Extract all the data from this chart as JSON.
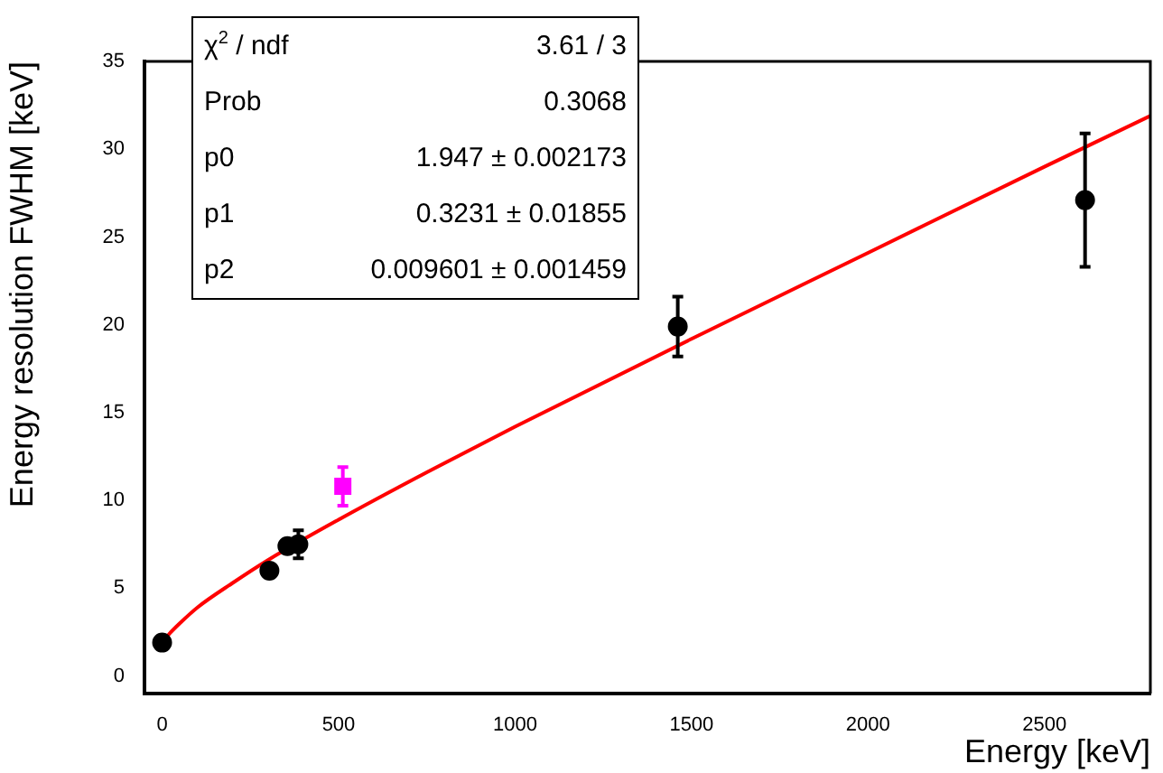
{
  "chart_data": {
    "type": "scatter",
    "xlabel": "Energy [keV]",
    "ylabel": "Energy resolution FWHM [keV]",
    "xlim": [
      -50,
      2800
    ],
    "ylim": [
      -1,
      35
    ],
    "xticks": [
      0,
      500,
      1000,
      1500,
      2000,
      2500
    ],
    "yticks": [
      0,
      5,
      10,
      15,
      20,
      25,
      30,
      35
    ],
    "grid": false,
    "legend": false,
    "series": [
      {
        "color": "#000000",
        "marker": "circle",
        "x": [
          0,
          304,
          355,
          386,
          1461,
          2615
        ],
        "values": [
          1.9,
          6.0,
          7.4,
          7.5,
          19.9,
          27.1
        ],
        "errors": [
          null,
          null,
          null,
          0.8,
          1.7,
          3.8
        ]
      },
      {
        "color": "#ff00ff",
        "marker": "square",
        "x": [
          512
        ],
        "values": [
          10.8
        ],
        "errors": [
          1.1
        ]
      },
      {
        "type": "line",
        "color": "#ff0000",
        "line_style": "solid",
        "marker": "none",
        "x": [
          0,
          25,
          50,
          100,
          200,
          300,
          500,
          750,
          1000,
          1500,
          2000,
          2500,
          2800
        ],
        "values": [
          1.9,
          2.5,
          3.0,
          3.9,
          5.3,
          6.6,
          8.9,
          11.6,
          14.2,
          19.2,
          24.1,
          29.0,
          31.9
        ]
      }
    ],
    "annotations": [
      "χ$^{2}$ / ndf",
      "3.61 / 3",
      "Prob",
      "0.3068",
      "p0",
      "1.947 ± 0.002173",
      "p1",
      "0.3231 ± 0.01855",
      "p2",
      "0.009601 ± 0.001459"
    ]
  }
}
